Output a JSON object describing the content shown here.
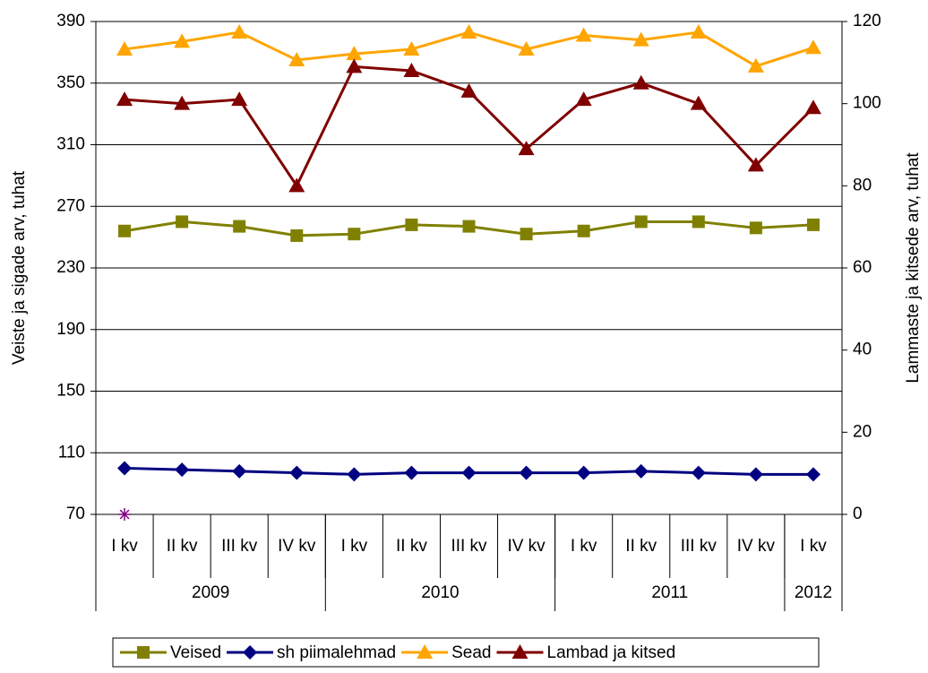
{
  "chart_data": {
    "type": "line",
    "ylabel": "Veiste ja sigade arv, tuhat",
    "y2label": "Lammaste ja kitsede arv, tuhat",
    "categories": [
      "I kv",
      "II kv",
      "III kv",
      "IV kv",
      "I kv",
      "II kv",
      "III kv",
      "IV kv",
      "I kv",
      "II kv",
      "III kv",
      "IV kv",
      "I kv"
    ],
    "groups": [
      {
        "label": "2009",
        "span": 4
      },
      {
        "label": "2010",
        "span": 4
      },
      {
        "label": "2011",
        "span": 4
      },
      {
        "label": "2012",
        "span": 1
      }
    ],
    "ylim": [
      70,
      390
    ],
    "yticks": [
      70,
      110,
      150,
      190,
      230,
      270,
      310,
      350,
      390
    ],
    "y2lim": [
      0,
      120
    ],
    "y2ticks": [
      0,
      20,
      40,
      60,
      80,
      100,
      120
    ],
    "grid": true,
    "legend": "bottom",
    "series": [
      {
        "name": "Veised",
        "color": "#808000",
        "marker": "square",
        "values": [
          254,
          260,
          257,
          251,
          252,
          258,
          257,
          252,
          254,
          260,
          260,
          256,
          258
        ]
      },
      {
        "name": "sh piimalehmad",
        "color": "#000080",
        "marker": "diamond",
        "values": [
          100,
          99,
          98,
          97,
          96,
          97,
          97,
          97,
          97,
          98,
          97,
          96,
          96
        ]
      },
      {
        "name": "Sead",
        "color": "#FFA500",
        "marker": "triangle",
        "values": [
          372,
          377,
          383,
          365,
          369,
          372,
          383,
          372,
          381,
          378,
          383,
          361,
          373
        ]
      },
      {
        "name": "Lambad ja kitsed",
        "color": "#800000",
        "marker": "triangle",
        "axis": "y2",
        "values": [
          101,
          100,
          101,
          80,
          109,
          108,
          103,
          89,
          101,
          105,
          100,
          85,
          99
        ]
      },
      {
        "color": "#800080",
        "marker": "star",
        "axis": "y2",
        "values": [
          0,
          null,
          null,
          null,
          null,
          null,
          null,
          null,
          null,
          null,
          null,
          null,
          null
        ]
      }
    ]
  }
}
